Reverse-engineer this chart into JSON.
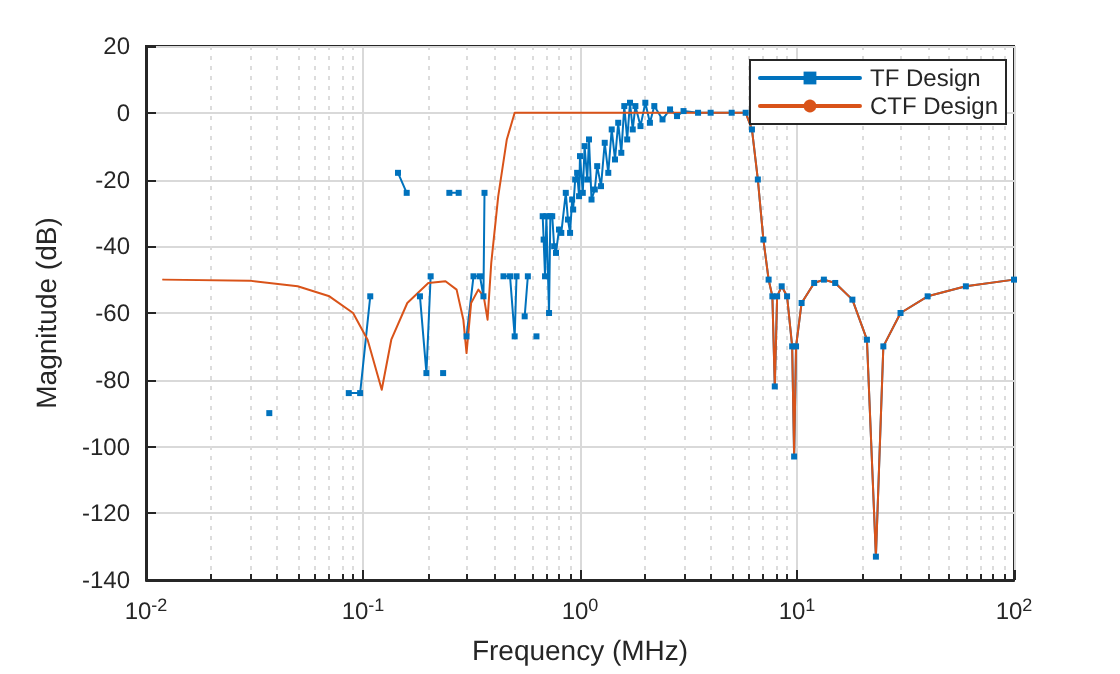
{
  "chart_data": {
    "type": "line",
    "xlabel": "Frequency (MHz)",
    "ylabel": "Magnitude (dB)",
    "log": "x",
    "xlim": [
      0.01,
      100
    ],
    "xticks": [
      {
        "value": 0.01,
        "label": "10$^{-2}$"
      },
      {
        "value": 0.1,
        "label": "10$^{-1}$"
      },
      {
        "value": 1,
        "label": "10$^{0}$"
      },
      {
        "value": 10,
        "label": "10$^{1}$"
      },
      {
        "value": 100,
        "label": "10$^{2}$"
      }
    ],
    "ylim": [
      -140,
      20
    ],
    "yticks": [
      -140,
      -120,
      -100,
      -80,
      -60,
      -40,
      -20,
      0,
      20
    ],
    "grid": true,
    "legend": "top right",
    "series": [
      {
        "name": "TF Design",
        "color": "#0072bd",
        "marker": "square",
        "line_style": "solid",
        "x": [
          0.037,
          0.06,
          0.086,
          0.097,
          0.108,
          0.12,
          0.145,
          0.159,
          0.17,
          0.183,
          0.196,
          0.205,
          0.22,
          0.234,
          0.24,
          0.25,
          0.276,
          0.285,
          0.3,
          0.323,
          0.346,
          0.359,
          0.363,
          0.4,
          0.444,
          0.476,
          0.5,
          0.51,
          0.53,
          0.556,
          0.575,
          0.6,
          0.63,
          0.65,
          0.673,
          0.68,
          0.69,
          0.7,
          0.72,
          0.73,
          0.745,
          0.76,
          0.775,
          0.8,
          0.82,
          0.86,
          0.88,
          0.9,
          0.92,
          0.93,
          0.95,
          0.97,
          0.99,
          1.0,
          1.03,
          1.05,
          1.08,
          1.1,
          1.13,
          1.17,
          1.2,
          1.25,
          1.3,
          1.35,
          1.4,
          1.45,
          1.5,
          1.55,
          1.6,
          1.65,
          1.7,
          1.75,
          1.8,
          1.9,
          2.0,
          2.1,
          2.2,
          2.4,
          2.6,
          2.8,
          3.0,
          3.5,
          4.0,
          5.0,
          5.8,
          6.2,
          6.6,
          7.0,
          7.4,
          7.7,
          7.9,
          8.1,
          8.5,
          9.0,
          9.5,
          9.7,
          9.9,
          10.5,
          12,
          13.3,
          15,
          18,
          21,
          23.1,
          25,
          30,
          40,
          60,
          100
        ],
        "values": [
          -90,
          null,
          -84,
          -84,
          -55,
          null,
          -18,
          -24,
          null,
          -55,
          -78,
          -49,
          null,
          -78,
          null,
          -24,
          -24,
          null,
          -67,
          -49,
          -49,
          -55,
          -24,
          null,
          -49,
          -49,
          -67,
          -49,
          null,
          -61,
          -49,
          null,
          -67,
          null,
          -31,
          -38,
          -49,
          -31,
          -60,
          -31,
          -31,
          -40,
          -42,
          -35,
          -36,
          -24,
          -32,
          -36,
          -26,
          -29,
          -20,
          -18,
          -25,
          -13,
          -24,
          -10,
          -20,
          -8,
          -26,
          -23,
          -16,
          -22,
          -9,
          -18,
          -5,
          -14,
          -3,
          -12,
          2,
          -8,
          3,
          -5,
          2,
          -4,
          3,
          -3,
          2,
          -2,
          1,
          -1,
          0.5,
          0,
          0,
          0,
          0,
          -5,
          -20,
          -38,
          -50,
          -55,
          -82,
          -55,
          -52,
          -55,
          -70,
          -103,
          -70,
          -57,
          -51,
          -50,
          -51,
          -56,
          -68,
          -133,
          -70,
          -60,
          -55,
          -52,
          -50
        ]
      },
      {
        "name": "CTF Design",
        "color": "#d95319",
        "marker": "none",
        "line_style": "solid",
        "x": [
          0.012,
          0.03,
          0.05,
          0.07,
          0.09,
          0.105,
          0.122,
          0.135,
          0.16,
          0.2,
          0.24,
          0.27,
          0.29,
          0.3,
          0.315,
          0.34,
          0.36,
          0.375,
          0.39,
          0.42,
          0.46,
          0.5,
          1,
          3,
          5.8,
          6.2,
          6.6,
          7.0,
          7.4,
          7.7,
          7.9,
          8.1,
          8.5,
          9.0,
          9.5,
          9.7,
          9.9,
          10.5,
          12,
          13.3,
          15,
          18,
          21,
          23.1,
          25,
          30,
          40,
          60,
          100
        ],
        "values": [
          -50,
          -50.3,
          -52,
          -55,
          -60,
          -68,
          -83,
          -68,
          -57,
          -51,
          -50.5,
          -53,
          -62,
          -72,
          -57,
          -53,
          -55,
          -62,
          -45,
          -25,
          -8,
          0,
          0,
          0,
          0,
          -5,
          -20,
          -38,
          -50,
          -55,
          -82,
          -55,
          -52,
          -55,
          -70,
          -103,
          -70,
          -57,
          -51,
          -50,
          -51,
          -56,
          -68,
          -133,
          -70,
          -60,
          -55,
          -52,
          -50
        ]
      }
    ]
  }
}
